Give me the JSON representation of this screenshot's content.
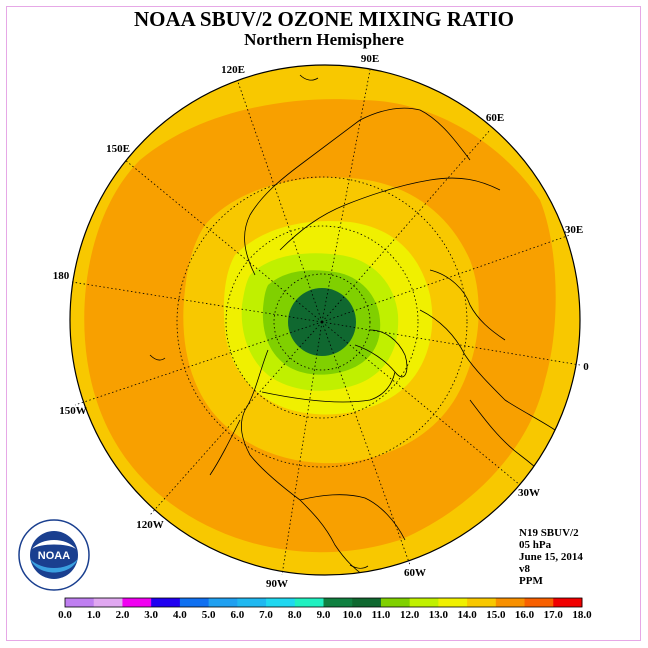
{
  "title": "NOAA SBUV/2 OZONE MIXING RATIO",
  "subtitle": "Northern Hemisphere",
  "longitude_labels": [
    "90E",
    "60E",
    "30E",
    "0",
    "30W",
    "60W",
    "90W",
    "120W",
    "150W",
    "180",
    "150E",
    "120E"
  ],
  "info": {
    "instrument": "N19 SBUV/2",
    "level": "05 hPa",
    "date": "June 15, 2014",
    "version": "v8",
    "units": "PPM"
  },
  "colorbar": {
    "ticks": [
      "0.0",
      "1.0",
      "2.0",
      "3.0",
      "4.0",
      "5.0",
      "6.0",
      "7.0",
      "8.0",
      "9.0",
      "10.0",
      "11.0",
      "12.0",
      "13.0",
      "14.0",
      "15.0",
      "16.0",
      "17.0",
      "18.0"
    ],
    "colors": [
      "#bf7ff0",
      "#e0a8f0",
      "#f000f0",
      "#2000f0",
      "#1070f0",
      "#20a0f0",
      "#20b8f0",
      "#20d8f0",
      "#20f0c0",
      "#108040",
      "#106830",
      "#80d000",
      "#c0f000",
      "#f0f000",
      "#f8c800",
      "#f89000",
      "#f86000",
      "#f00000",
      "#805030"
    ]
  },
  "logo": {
    "text": "NOAA",
    "ring_text": "NATIONAL OCEANIC AND ATMOSPHERIC ADMINISTRATION · U.S. DEPARTMENT OF COMMERCE"
  }
}
